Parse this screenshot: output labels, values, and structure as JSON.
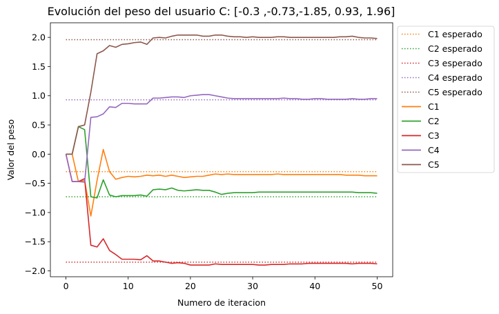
{
  "chart_data": {
    "type": "line",
    "title": "Evolución del peso del usuario C: [-0.3 ,-0.73,-1.85, 0.93, 1.96]",
    "xlabel": "Numero de iteracion",
    "ylabel": "Valor del peso",
    "xlim": [
      -2.5,
      52.5
    ],
    "ylim": [
      -2.1,
      2.25
    ],
    "xticks": [
      0,
      10,
      20,
      30,
      40,
      50
    ],
    "yticks": [
      -2.0,
      -1.5,
      -1.0,
      -0.5,
      0.0,
      0.5,
      1.0,
      1.5,
      2.0
    ],
    "ytick_labels": [
      "−2.0",
      "−1.5",
      "−1.0",
      "−0.5",
      "0.0",
      "0.5",
      "1.0",
      "1.5",
      "2.0"
    ],
    "legend_position": "outside-right-top",
    "reference_lines": [
      {
        "name": "C1 esperado",
        "value": -0.3,
        "color": "#ff7f0e",
        "style": "dotted"
      },
      {
        "name": "C2 esperado",
        "value": -0.73,
        "color": "#2ca02c",
        "style": "dotted"
      },
      {
        "name": "C3 esperado",
        "value": -1.85,
        "color": "#d62728",
        "style": "dotted"
      },
      {
        "name": "C4 esperado",
        "value": 0.93,
        "color": "#9467bd",
        "style": "dotted"
      },
      {
        "name": "C5 esperado",
        "value": 1.96,
        "color": "#8c564b",
        "style": "dotted"
      }
    ],
    "x": [
      0,
      1,
      2,
      3,
      4,
      5,
      6,
      7,
      8,
      9,
      10,
      11,
      12,
      13,
      14,
      15,
      16,
      17,
      18,
      19,
      20,
      21,
      22,
      23,
      24,
      25,
      26,
      27,
      28,
      29,
      30,
      31,
      32,
      33,
      34,
      35,
      36,
      37,
      38,
      39,
      40,
      41,
      42,
      43,
      44,
      45,
      46,
      47,
      48,
      49,
      50
    ],
    "series": [
      {
        "name": "C1",
        "color": "#ff7f0e",
        "values": [
          0,
          0,
          -0.47,
          -0.45,
          -1.06,
          -0.45,
          0.08,
          -0.3,
          -0.43,
          -0.4,
          -0.38,
          -0.39,
          -0.38,
          -0.36,
          -0.37,
          -0.36,
          -0.38,
          -0.36,
          -0.38,
          -0.4,
          -0.39,
          -0.38,
          -0.38,
          -0.36,
          -0.34,
          -0.35,
          -0.34,
          -0.35,
          -0.35,
          -0.35,
          -0.35,
          -0.35,
          -0.35,
          -0.35,
          -0.34,
          -0.35,
          -0.35,
          -0.35,
          -0.35,
          -0.35,
          -0.35,
          -0.35,
          -0.35,
          -0.35,
          -0.35,
          -0.36,
          -0.36,
          -0.36,
          -0.37,
          -0.37,
          -0.37
        ]
      },
      {
        "name": "C2",
        "color": "#2ca02c",
        "values": [
          0,
          0,
          0.47,
          0.42,
          -0.73,
          -0.75,
          -0.44,
          -0.7,
          -0.73,
          -0.71,
          -0.71,
          -0.71,
          -0.7,
          -0.72,
          -0.61,
          -0.6,
          -0.61,
          -0.58,
          -0.62,
          -0.63,
          -0.62,
          -0.61,
          -0.62,
          -0.62,
          -0.65,
          -0.69,
          -0.67,
          -0.66,
          -0.66,
          -0.66,
          -0.66,
          -0.65,
          -0.65,
          -0.65,
          -0.65,
          -0.65,
          -0.65,
          -0.65,
          -0.65,
          -0.65,
          -0.65,
          -0.65,
          -0.65,
          -0.65,
          -0.65,
          -0.65,
          -0.65,
          -0.66,
          -0.66,
          -0.66,
          -0.67
        ]
      },
      {
        "name": "C3",
        "color": "#d62728",
        "values": [
          0,
          -0.47,
          -0.47,
          -0.42,
          -1.56,
          -1.59,
          -1.45,
          -1.65,
          -1.72,
          -1.8,
          -1.8,
          -1.8,
          -1.81,
          -1.74,
          -1.83,
          -1.83,
          -1.85,
          -1.87,
          -1.86,
          -1.87,
          -1.9,
          -1.9,
          -1.9,
          -1.9,
          -1.88,
          -1.89,
          -1.89,
          -1.89,
          -1.89,
          -1.89,
          -1.89,
          -1.9,
          -1.9,
          -1.89,
          -1.89,
          -1.89,
          -1.88,
          -1.88,
          -1.88,
          -1.87,
          -1.87,
          -1.87,
          -1.87,
          -1.87,
          -1.87,
          -1.87,
          -1.88,
          -1.87,
          -1.87,
          -1.87,
          -1.88
        ]
      },
      {
        "name": "C4",
        "color": "#9467bd",
        "values": [
          0,
          -0.47,
          -0.47,
          -0.48,
          0.63,
          0.64,
          0.69,
          0.81,
          0.8,
          0.87,
          0.87,
          0.86,
          0.86,
          0.86,
          0.96,
          0.96,
          0.97,
          0.98,
          0.98,
          0.97,
          1.0,
          1.01,
          1.02,
          1.02,
          1.0,
          0.98,
          0.96,
          0.95,
          0.95,
          0.95,
          0.95,
          0.95,
          0.95,
          0.95,
          0.95,
          0.96,
          0.95,
          0.95,
          0.94,
          0.94,
          0.95,
          0.95,
          0.94,
          0.94,
          0.94,
          0.94,
          0.95,
          0.94,
          0.94,
          0.95,
          0.95
        ]
      },
      {
        "name": "C5",
        "color": "#8c564b",
        "values": [
          0,
          0,
          0.47,
          0.5,
          1.06,
          1.72,
          1.77,
          1.86,
          1.83,
          1.88,
          1.89,
          1.91,
          1.92,
          1.88,
          1.99,
          2.0,
          1.99,
          2.02,
          2.04,
          2.04,
          2.04,
          2.04,
          2.02,
          2.02,
          2.04,
          2.04,
          2.02,
          2.01,
          2.01,
          2.0,
          2.01,
          2.0,
          2.0,
          2.0,
          2.01,
          2.01,
          2.0,
          2.0,
          2.0,
          2.0,
          2.0,
          2.0,
          2.0,
          2.0,
          2.01,
          2.01,
          2.02,
          2.0,
          1.99,
          1.99,
          1.98
        ]
      }
    ]
  }
}
